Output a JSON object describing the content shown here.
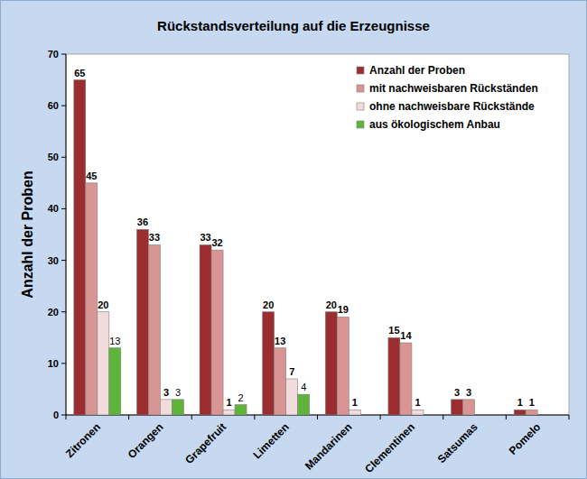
{
  "chart_data": {
    "type": "bar",
    "title": "Rückstandsverteilung auf die Erzeugnisse",
    "y_label": "Anzahl der Proben",
    "categories": [
      "Zitronen",
      "Orangen",
      "Grapefruit",
      "Limetten",
      "Mandarinen",
      "Clementinen",
      "Satsumas",
      "Pomelo"
    ],
    "series": [
      {
        "name": "Anzahl der Proben",
        "color": "#9b2d30",
        "values": [
          65,
          36,
          33,
          20,
          20,
          15,
          3,
          1
        ]
      },
      {
        "name": "mit nachweisbaren Rückständen",
        "color": "#d99594",
        "values": [
          45,
          33,
          32,
          13,
          19,
          14,
          3,
          1
        ]
      },
      {
        "name": "ohne nachweisbare Rückstände",
        "color": "#f2dcdb",
        "values": [
          20,
          3,
          1,
          7,
          1,
          1,
          null,
          null
        ]
      },
      {
        "name": "aus ökologischem Anbau",
        "color": "#5fb53a",
        "values": [
          13,
          3,
          2,
          4,
          null,
          null,
          null,
          null
        ]
      }
    ],
    "ylim": [
      0,
      70
    ],
    "yticks": [
      0,
      10,
      20,
      30,
      40,
      50,
      60,
      70
    ],
    "grid": false,
    "legend": "upper right",
    "data_labels": true
  }
}
